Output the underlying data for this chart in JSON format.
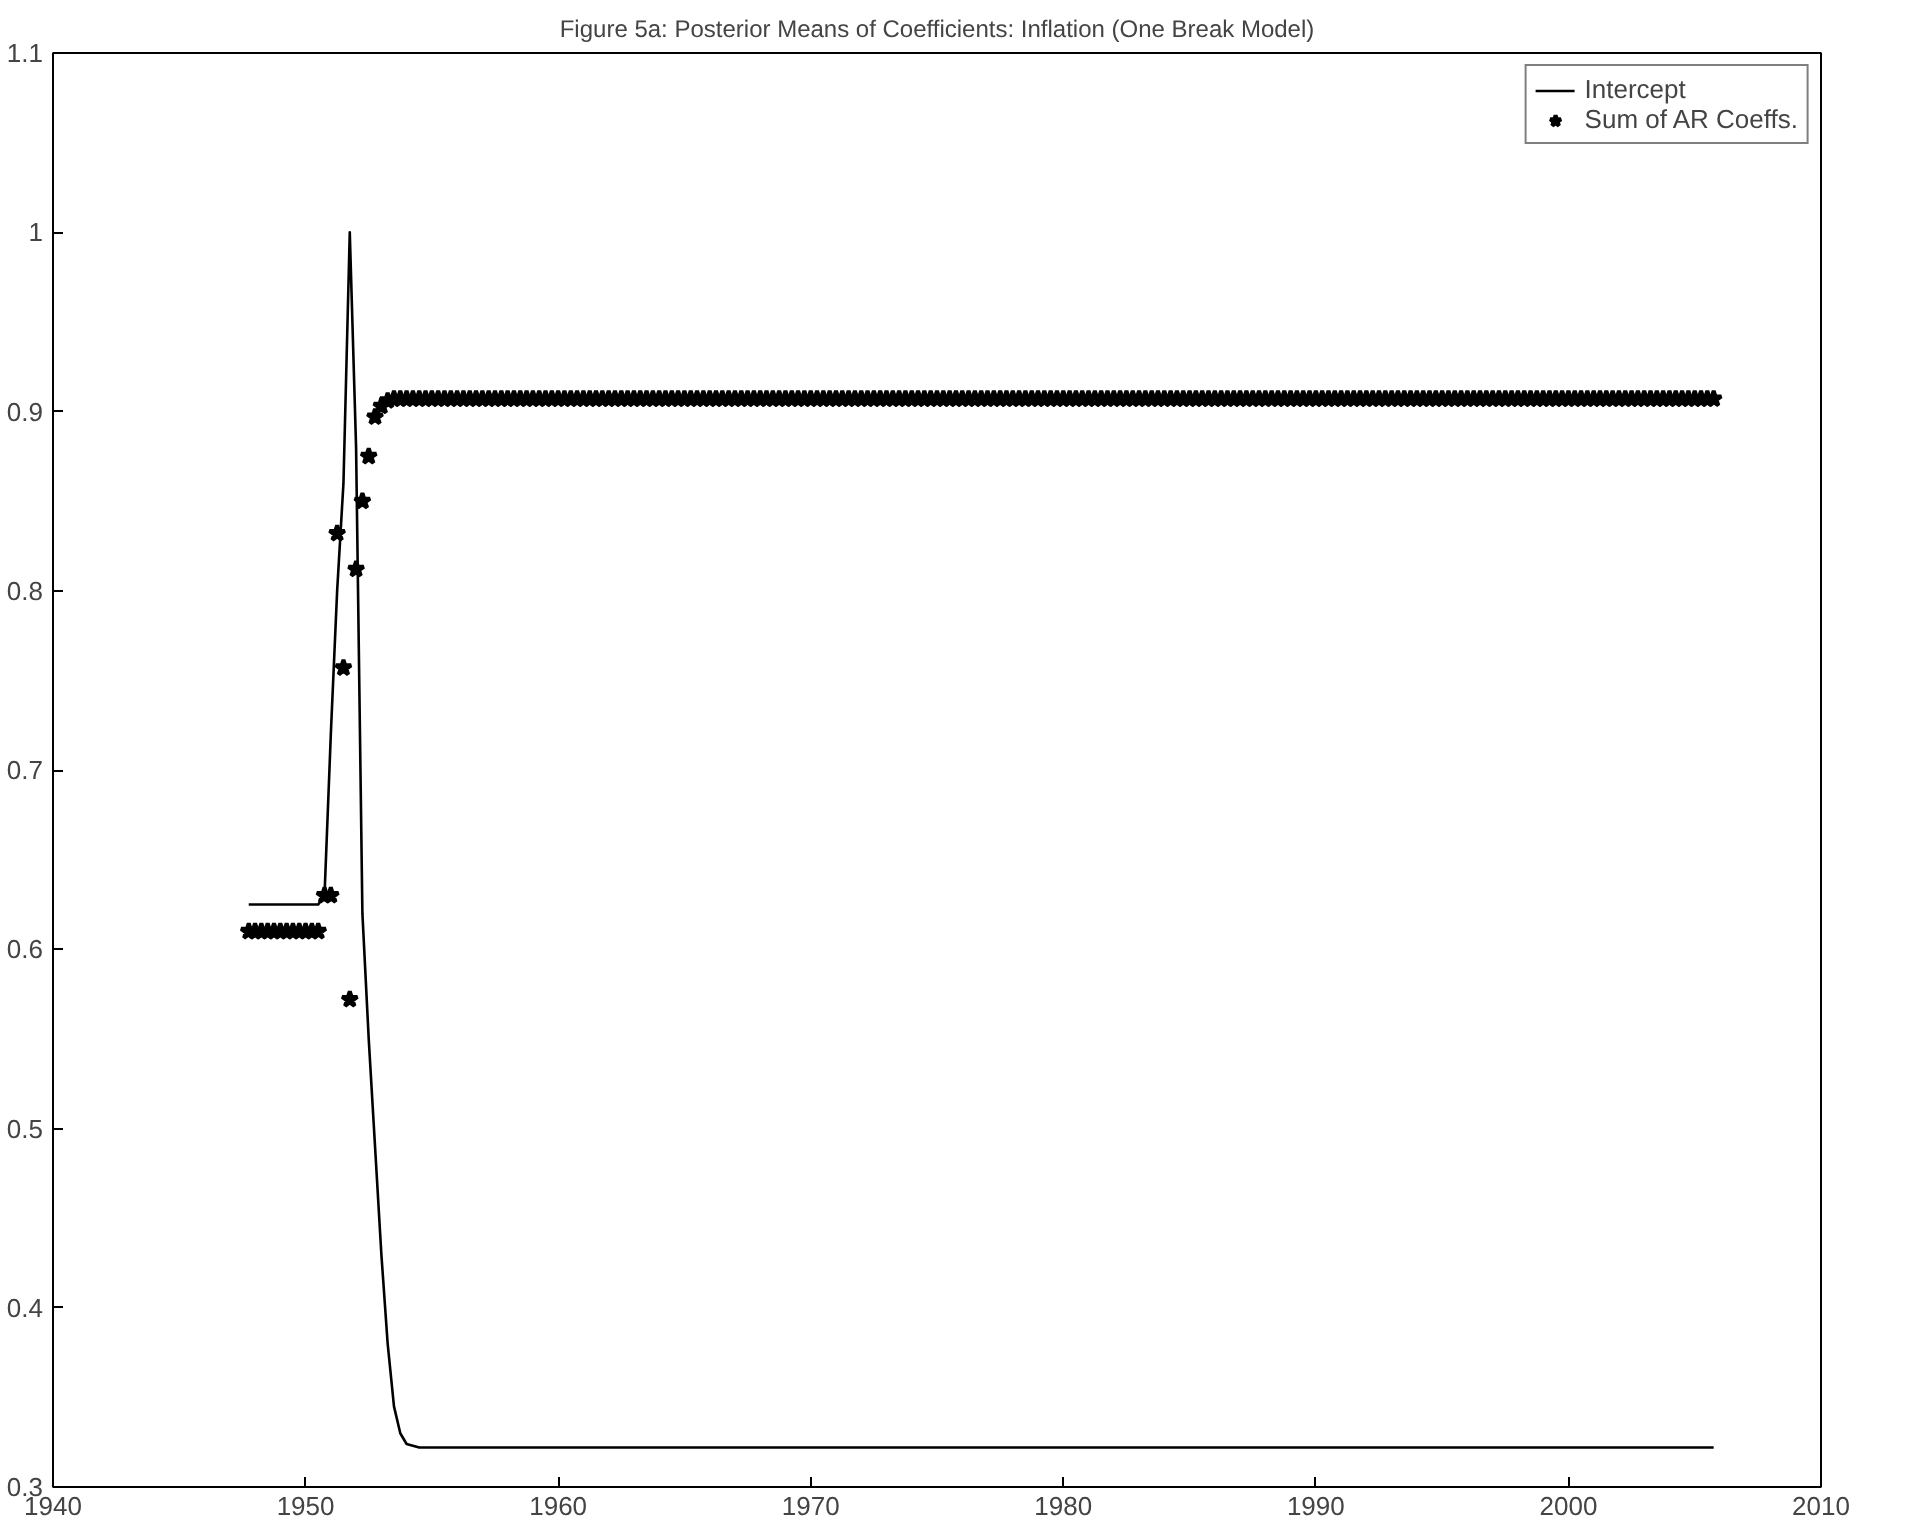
{
  "chart_data": {
    "type": "line",
    "title": "Figure 5a: Posterior Means of Coefficients: Inflation (One Break Model)",
    "xlim": [
      1940,
      2010
    ],
    "xticks": [
      1940,
      1950,
      1960,
      1970,
      1980,
      1990,
      2000,
      2010
    ],
    "ylim": [
      0.3,
      1.1
    ],
    "yticks": [
      0.3,
      0.4,
      0.5,
      0.6,
      0.7,
      0.8,
      0.9,
      1,
      1.1
    ],
    "grid": false,
    "legend": "top right",
    "series": [
      {
        "name": "Intercept",
        "color": "#000000",
        "line_style": "solid",
        "marker": "none",
        "x": [
          1947.75,
          1950.5,
          1950.75,
          1951.0,
          1951.25,
          1951.5,
          1951.75,
          1952.0,
          1952.25,
          1952.5,
          1952.75,
          1953.0,
          1953.25,
          1953.5,
          1953.75,
          1954.0,
          1954.5,
          2005.75
        ],
        "values": [
          0.625,
          0.625,
          0.63,
          0.72,
          0.8,
          0.86,
          1.0,
          0.88,
          0.62,
          0.55,
          0.49,
          0.43,
          0.38,
          0.345,
          0.33,
          0.324,
          0.322,
          0.322
        ]
      },
      {
        "name": "Sum of AR Coeffs.",
        "type": "scatter",
        "color": "#000000",
        "marker": "star",
        "x": [
          1947.75,
          1948,
          1948.25,
          1948.5,
          1948.75,
          1949,
          1949.25,
          1949.5,
          1949.75,
          1950,
          1950.25,
          1950.5,
          1950.75,
          1951,
          1951.25,
          1951.5,
          1951.75,
          1952,
          1952.25,
          1952.5,
          1952.75,
          1953,
          1953.25,
          1953.5,
          1953.75,
          1954,
          1954.25,
          1954.5,
          1954.75,
          1955,
          1955.25,
          1955.5,
          1955.75,
          1956,
          1956.25,
          1956.5,
          1956.75,
          1957,
          1957.25,
          1957.5,
          1957.75,
          1958,
          1958.25,
          1958.5,
          1958.75,
          1959,
          1959.25,
          1959.5,
          1959.75,
          1960,
          1960.25,
          1960.5,
          1960.75,
          1961,
          1961.25,
          1961.5,
          1961.75,
          1962,
          1962.25,
          1962.5,
          1962.75,
          1963,
          1963.25,
          1963.5,
          1963.75,
          1964,
          1964.25,
          1964.5,
          1964.75,
          1965,
          1965.25,
          1965.5,
          1965.75,
          1966,
          1966.25,
          1966.5,
          1966.75,
          1967,
          1967.25,
          1967.5,
          1967.75,
          1968,
          1968.25,
          1968.5,
          1968.75,
          1969,
          1969.25,
          1969.5,
          1969.75,
          1970,
          1970.25,
          1970.5,
          1970.75,
          1971,
          1971.25,
          1971.5,
          1971.75,
          1972,
          1972.25,
          1972.5,
          1972.75,
          1973,
          1973.25,
          1973.5,
          1973.75,
          1974,
          1974.25,
          1974.5,
          1974.75,
          1975,
          1975.25,
          1975.5,
          1975.75,
          1976,
          1976.25,
          1976.5,
          1976.75,
          1977,
          1977.25,
          1977.5,
          1977.75,
          1978,
          1978.25,
          1978.5,
          1978.75,
          1979,
          1979.25,
          1979.5,
          1979.75,
          1980,
          1980.25,
          1980.5,
          1980.75,
          1981,
          1981.25,
          1981.5,
          1981.75,
          1982,
          1982.25,
          1982.5,
          1982.75,
          1983,
          1983.25,
          1983.5,
          1983.75,
          1984,
          1984.25,
          1984.5,
          1984.75,
          1985,
          1985.25,
          1985.5,
          1985.75,
          1986,
          1986.25,
          1986.5,
          1986.75,
          1987,
          1987.25,
          1987.5,
          1987.75,
          1988,
          1988.25,
          1988.5,
          1988.75,
          1989,
          1989.25,
          1989.5,
          1989.75,
          1990,
          1990.25,
          1990.5,
          1990.75,
          1991,
          1991.25,
          1991.5,
          1991.75,
          1992,
          1992.25,
          1992.5,
          1992.75,
          1993,
          1993.25,
          1993.5,
          1993.75,
          1994,
          1994.25,
          1994.5,
          1994.75,
          1995,
          1995.25,
          1995.5,
          1995.75,
          1996,
          1996.25,
          1996.5,
          1996.75,
          1997,
          1997.25,
          1997.5,
          1997.75,
          1998,
          1998.25,
          1998.5,
          1998.75,
          1999,
          1999.25,
          1999.5,
          1999.75,
          2000,
          2000.25,
          2000.5,
          2000.75,
          2001,
          2001.25,
          2001.5,
          2001.75,
          2002,
          2002.25,
          2002.5,
          2002.75,
          2003,
          2003.25,
          2003.5,
          2003.75,
          2004,
          2004.25,
          2004.5,
          2004.75,
          2005,
          2005.25,
          2005.5,
          2005.75
        ],
        "values": [
          0.61,
          0.61,
          0.61,
          0.61,
          0.61,
          0.61,
          0.61,
          0.61,
          0.61,
          0.61,
          0.61,
          0.61,
          0.63,
          0.63,
          0.832,
          0.757,
          0.572,
          0.812,
          0.85,
          0.875,
          0.897,
          0.903,
          0.906,
          0.907,
          0.907,
          0.907,
          0.907,
          0.907,
          0.907,
          0.907,
          0.907,
          0.907,
          0.907,
          0.907,
          0.907,
          0.907,
          0.907,
          0.907,
          0.907,
          0.907,
          0.907,
          0.907,
          0.907,
          0.907,
          0.907,
          0.907,
          0.907,
          0.907,
          0.907,
          0.907,
          0.907,
          0.907,
          0.907,
          0.907,
          0.907,
          0.907,
          0.907,
          0.907,
          0.907,
          0.907,
          0.907,
          0.907,
          0.907,
          0.907,
          0.907,
          0.907,
          0.907,
          0.907,
          0.907,
          0.907,
          0.907,
          0.907,
          0.907,
          0.907,
          0.907,
          0.907,
          0.907,
          0.907,
          0.907,
          0.907,
          0.907,
          0.907,
          0.907,
          0.907,
          0.907,
          0.907,
          0.907,
          0.907,
          0.907,
          0.907,
          0.907,
          0.907,
          0.907,
          0.907,
          0.907,
          0.907,
          0.907,
          0.907,
          0.907,
          0.907,
          0.907,
          0.907,
          0.907,
          0.907,
          0.907,
          0.907,
          0.907,
          0.907,
          0.907,
          0.907,
          0.907,
          0.907,
          0.907,
          0.907,
          0.907,
          0.907,
          0.907,
          0.907,
          0.907,
          0.907,
          0.907,
          0.907,
          0.907,
          0.907,
          0.907,
          0.907,
          0.907,
          0.907,
          0.907,
          0.907,
          0.907,
          0.907,
          0.907,
          0.907,
          0.907,
          0.907,
          0.907,
          0.907,
          0.907,
          0.907,
          0.907,
          0.907,
          0.907,
          0.907,
          0.907,
          0.907,
          0.907,
          0.907,
          0.907,
          0.907,
          0.907,
          0.907,
          0.907,
          0.907,
          0.907,
          0.907,
          0.907,
          0.907,
          0.907,
          0.907,
          0.907,
          0.907,
          0.907,
          0.907,
          0.907,
          0.907,
          0.907,
          0.907,
          0.907,
          0.907,
          0.907,
          0.907,
          0.907,
          0.907,
          0.907,
          0.907,
          0.907,
          0.907,
          0.907,
          0.907,
          0.907,
          0.907,
          0.907,
          0.907,
          0.907,
          0.907,
          0.907,
          0.907,
          0.907,
          0.907,
          0.907,
          0.907,
          0.907,
          0.907,
          0.907,
          0.907,
          0.907,
          0.907,
          0.907,
          0.907,
          0.907,
          0.907,
          0.907,
          0.907,
          0.907,
          0.907,
          0.907,
          0.907,
          0.907,
          0.907,
          0.907,
          0.907,
          0.907,
          0.907,
          0.907,
          0.907,
          0.907,
          0.907,
          0.907,
          0.907,
          0.907,
          0.907,
          0.907,
          0.907,
          0.907,
          0.907,
          0.907,
          0.907,
          0.907,
          0.907,
          0.907,
          0.907,
          0.907
        ]
      }
    ]
  }
}
